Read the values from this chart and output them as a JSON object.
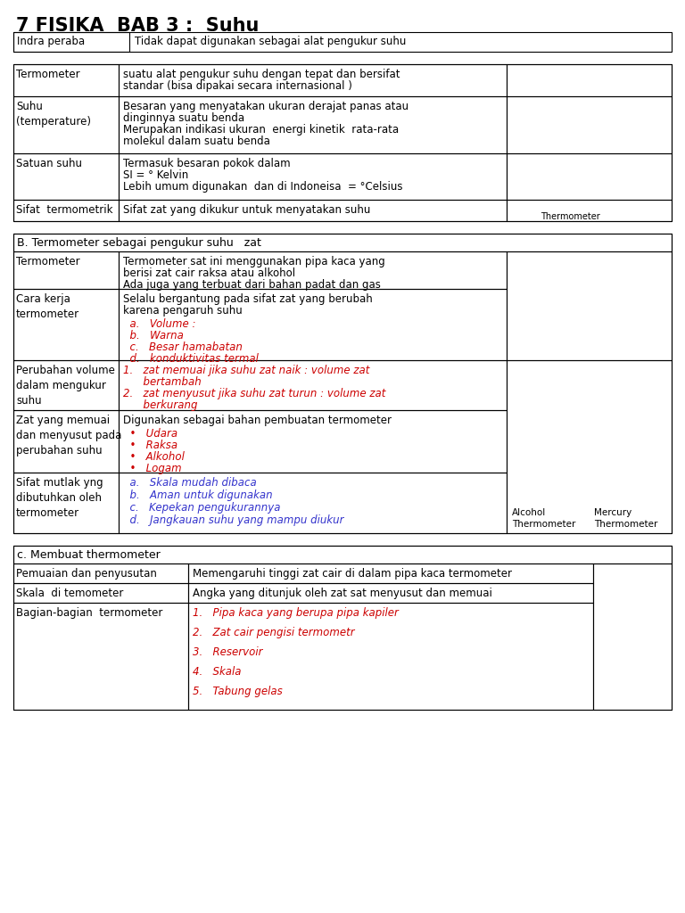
{
  "title": "7 FISIKA  BAB 3 :  Suhu",
  "bg_color": "#ffffff",
  "text_color": "#000000",
  "red_color": "#cc0000",
  "blue_color": "#3333cc",
  "line_color": "#000000",
  "t1_rows": [
    [
      "Indra peraba",
      "Tidak dapat digunakan sebagai alat pengukur suhu"
    ]
  ],
  "t2_rows": [
    [
      "Termometer",
      "suatu alat pengukur suhu dengan tepat dan bersifat\nstandar (bisa dipakai secara internasional )"
    ],
    [
      "Suhu\n(temperature)",
      "Besaran yang menyatakan ukuran derajat panas atau\ndinginnya suatu benda\nMerupakan indikasi ukuran  energi kinetik  rata-rata\nmolekul dalam suatu benda"
    ],
    [
      "Satuan suhu",
      "Termasuk besaran pokok dalam\nSI = ° Kelvin\nLebih umum digunakan  dan di Indoneisa  = °Celsius"
    ],
    [
      "Sifat  termometrik",
      "Sifat zat yang dikukur untuk menyatakan suhu"
    ]
  ],
  "t3_header": "B. Termometer sebagai pengukur suhu   zat",
  "t3_rows": [
    [
      "Termometer",
      "black",
      "Termometer sat ini menggunakan pipa kaca yang\nberisi zat cair raksa atau alkohol\nAda juga yang terbuat dari bahan padat dan gas"
    ],
    [
      "Cara kerja\ntermometer",
      "black",
      "Selalu bergantung pada sifat zat yang berubah\nkarena pengaruh suhu"
    ],
    [
      "",
      "red_italic",
      "  a.   Volume :\n  b.   Warna\n  c.   Besar hamabatan\n  d.   konduktivitas termal"
    ],
    [
      "Perubahan volume\ndalam mengukur\nsuhu",
      "red_italic",
      "1.   zat memuai jika suhu zat naik : volume zat\n      bertambah\n2.   zat menyusut jika suhu zat turun : volume zat\n      berkurang"
    ],
    [
      "Zat yang memuai\ndan menyusut pada\nperubahan suhu",
      "black",
      "Digunakan sebagai bahan pembuatan termometer"
    ],
    [
      "",
      "red_italic",
      "  •   Udara\n  •   Raksa\n  •   Alkohol\n  •   Logam"
    ],
    [
      "Sifat mutlak yng\ndibutuhkan oleh\ntermometer",
      "blue_italic",
      "  a.   Skala mudah dibaca\n  b.   Aman untuk digunakan\n  c.   Kepekan pengukurannya\n  d.   Jangkauan suhu yang mampu diukur"
    ]
  ],
  "t4_header": "c. Membuat thermometer",
  "t4_rows": [
    [
      "Pemuaian dan penyusutan",
      "black",
      "Memengaruhi tinggi zat cair di dalam pipa kaca termometer"
    ],
    [
      "Skala  di temometer",
      "black",
      "Angka yang ditunjuk oleh zat sat menyusut dan memuai"
    ],
    [
      "Bagian-bagian  termometer",
      "red_italic",
      "1.   Pipa kaca yang berupa pipa kapiler\n2.   Zat cair pengisi termometr\n3.   Reservoir\n4.   Skala\n5.   Tabung gelas"
    ]
  ]
}
